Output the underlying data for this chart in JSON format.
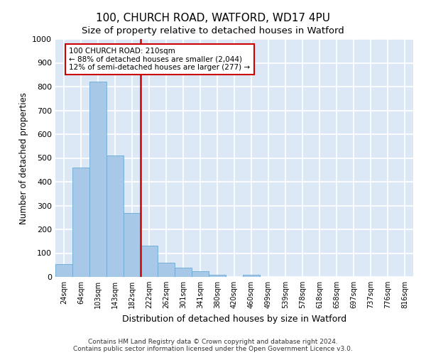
{
  "title_line1": "100, CHURCH ROAD, WATFORD, WD17 4PU",
  "title_line2": "Size of property relative to detached houses in Watford",
  "xlabel": "Distribution of detached houses by size in Watford",
  "ylabel": "Number of detached properties",
  "footnote1": "Contains HM Land Registry data © Crown copyright and database right 2024.",
  "footnote2": "Contains public sector information licensed under the Open Government Licence v3.0.",
  "bar_color": "#a8c8e8",
  "bar_edge_color": "#6aaad4",
  "background_color": "#dce8f5",
  "grid_color": "#ffffff",
  "vline_color": "#cc0000",
  "annotation_text": "100 CHURCH ROAD: 210sqm\n← 88% of detached houses are smaller (2,044)\n12% of semi-detached houses are larger (277) →",
  "annotation_box_edgecolor": "#cc0000",
  "bin_labels": [
    "24sqm",
    "64sqm",
    "103sqm",
    "143sqm",
    "182sqm",
    "222sqm",
    "262sqm",
    "301sqm",
    "341sqm",
    "380sqm",
    "420sqm",
    "460sqm",
    "499sqm",
    "539sqm",
    "578sqm",
    "618sqm",
    "658sqm",
    "697sqm",
    "737sqm",
    "776sqm",
    "816sqm"
  ],
  "bar_heights": [
    55,
    460,
    820,
    510,
    270,
    130,
    60,
    40,
    25,
    10,
    0,
    10,
    0,
    0,
    0,
    0,
    0,
    0,
    0,
    0,
    0
  ],
  "ylim": [
    0,
    1000
  ],
  "yticks": [
    0,
    100,
    200,
    300,
    400,
    500,
    600,
    700,
    800,
    900,
    1000
  ],
  "vline_pos": 4.5
}
